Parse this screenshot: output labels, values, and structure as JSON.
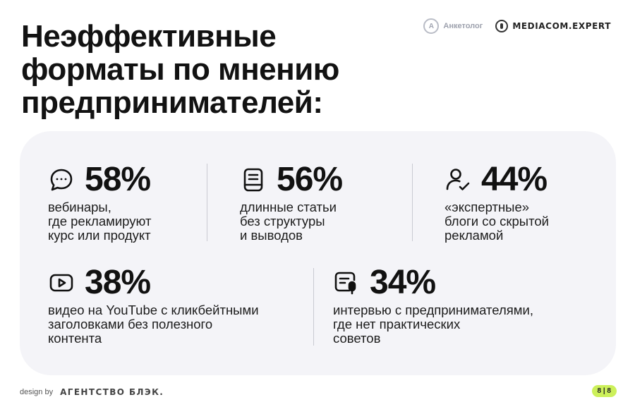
{
  "title": {
    "line1": "Неэффективные",
    "line2": "форматы по мнению",
    "line3": "предпринимателей:"
  },
  "brands": {
    "anketolog_label": "Анкетолог",
    "anketolog_letter": "А",
    "mediacom_label": "MEDIACOM.EXPERT"
  },
  "stats": [
    {
      "percent": "58%",
      "icon": "chat-bubble-icon",
      "lines": [
        "вебинары,",
        "где рекламируют",
        "курс или продукт"
      ]
    },
    {
      "percent": "56%",
      "icon": "document-icon",
      "lines": [
        "длинные статьи",
        "без структуры",
        "и выводов"
      ]
    },
    {
      "percent": "44%",
      "icon": "user-check-icon",
      "lines": [
        "«экспертные»",
        "блоги со скрытой",
        "рекламой"
      ]
    },
    {
      "percent": "38%",
      "icon": "video-play-icon",
      "lines": [
        "видео на YouTube с кликбейтными",
        "заголовками без полезного",
        "контента"
      ]
    },
    {
      "percent": "34%",
      "icon": "interview-mic-icon",
      "lines": [
        "интервью с предпринимателями,",
        "где нет практических",
        "советов"
      ]
    }
  ],
  "footer": {
    "design_by": "design by",
    "agency": "АГЕНТСТВО БЛЭК.",
    "page": "8 | 8"
  },
  "colors": {
    "panel_bg": "#f4f4f8",
    "badge": "#ccf05a",
    "text": "#141414"
  }
}
